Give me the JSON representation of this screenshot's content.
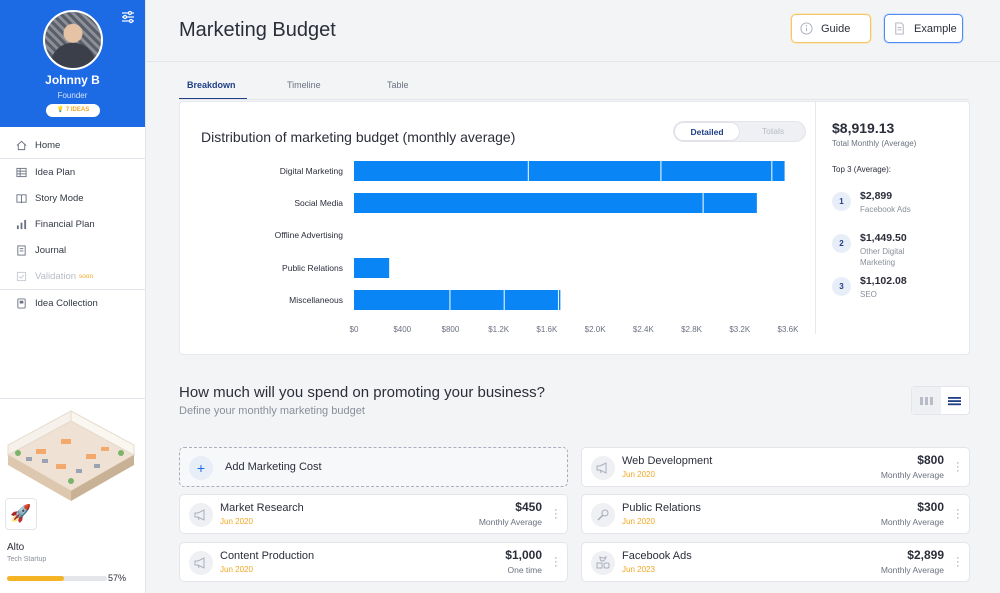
{
  "profile": {
    "name": "Johnny B",
    "role": "Founder",
    "badge": "7 IDEAS"
  },
  "nav": {
    "items": [
      {
        "label": "Home",
        "icon": "home-icon"
      },
      {
        "label": "Idea Plan",
        "icon": "table-icon"
      },
      {
        "label": "Story Mode",
        "icon": "book-icon"
      },
      {
        "label": "Financial Plan",
        "icon": "bar-chart-icon"
      },
      {
        "label": "Journal",
        "icon": "journal-icon"
      },
      {
        "label": "Validation",
        "icon": "check-icon",
        "suffix": "soon"
      },
      {
        "label": "Idea Collection",
        "icon": "collection-icon"
      }
    ]
  },
  "company": {
    "name": "Alto",
    "type": "Tech Startup",
    "progress_label": "57%",
    "progress": 0.57
  },
  "header": {
    "title": "Marketing Budget",
    "guide_label": "Guide",
    "example_label": "Example"
  },
  "tabs": [
    {
      "label": "Breakdown"
    },
    {
      "label": "Timeline"
    },
    {
      "label": "Table"
    }
  ],
  "chart": {
    "toggle_on": "Detailed",
    "toggle_off": "Totals"
  },
  "chart_data": {
    "type": "bar",
    "orientation": "horizontal",
    "stacked": true,
    "title": "Distribution of marketing budget (monthly average)",
    "categories": [
      "Digital Marketing",
      "Social Media",
      "Offline Advertising",
      "Public Relations",
      "Miscellaneous"
    ],
    "segments": [
      [
        1450,
        1100,
        920,
        110
      ],
      [
        2900,
        450
      ],
      [],
      [
        300
      ],
      [
        800,
        450,
        450,
        20
      ]
    ],
    "xlim": [
      0,
      3600
    ],
    "xticks": [
      "$0",
      "$400",
      "$800",
      "$1.2K",
      "$1.6K",
      "$2.0K",
      "$2.4K",
      "$2.8K",
      "$3.2K",
      "$3.6K"
    ],
    "color": "#0a85f5"
  },
  "summary": {
    "total": "$8,919.13",
    "total_label": "Total Monthly (Average)",
    "top_label": "Top 3 (Average):",
    "items": [
      {
        "rank": "1",
        "value": "$2,899",
        "label": "Facebook Ads"
      },
      {
        "rank": "2",
        "value": "$1,449.50",
        "label": "Other Digital Marketing"
      },
      {
        "rank": "3",
        "value": "$1,102.08",
        "label": "SEO"
      }
    ]
  },
  "section": {
    "title": "How much will you spend on promoting your business?",
    "subtitle": "Define your monthly marketing budget"
  },
  "add_card": {
    "label": "Add Marketing Cost"
  },
  "costs": [
    {
      "name": "Web Development",
      "date": "Jun 2020",
      "amount": "$800",
      "freq": "Monthly Average",
      "icon": "megaphone-icon"
    },
    {
      "name": "Market Research",
      "date": "Jun 2020",
      "amount": "$450",
      "freq": "Monthly Average",
      "icon": "megaphone-icon"
    },
    {
      "name": "Public Relations",
      "date": "Jun 2020",
      "amount": "$300",
      "freq": "Monthly Average",
      "icon": "microphone-icon"
    },
    {
      "name": "Content Production",
      "date": "Jun 2020",
      "amount": "$1,000",
      "freq": "One time",
      "icon": "megaphone-icon"
    },
    {
      "name": "Facebook Ads",
      "date": "Jun 2023",
      "amount": "$2,899",
      "freq": "Monthly Average",
      "icon": "social-icon"
    }
  ]
}
